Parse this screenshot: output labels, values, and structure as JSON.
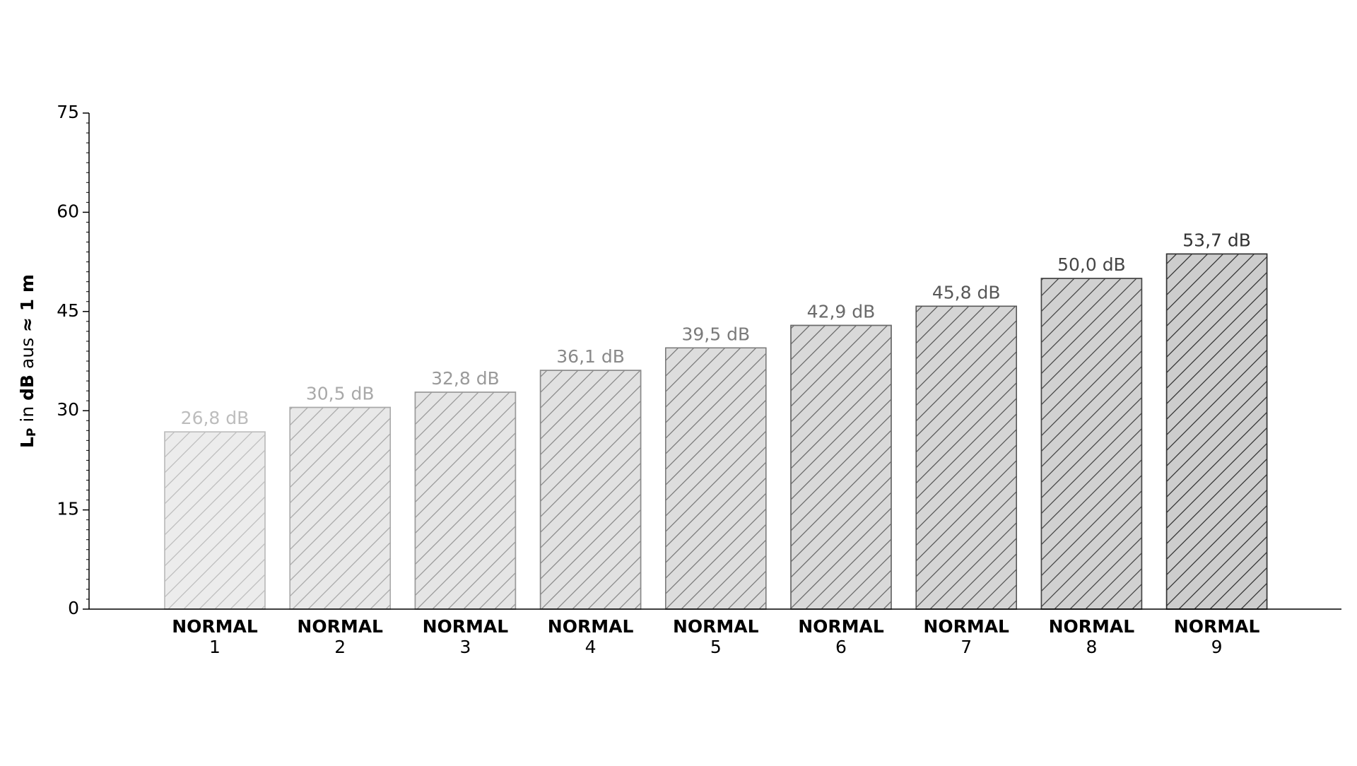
{
  "chart_data": {
    "type": "bar",
    "y_label": {
      "main": "L",
      "sub": "P",
      "in": " in ",
      "unit": "dB",
      "aus": " aus ",
      "dist": "≈ 1 m"
    },
    "categories": [
      [
        "NORMAL",
        "1"
      ],
      [
        "NORMAL",
        "2"
      ],
      [
        "NORMAL",
        "3"
      ],
      [
        "NORMAL",
        "4"
      ],
      [
        "NORMAL",
        "5"
      ],
      [
        "NORMAL",
        "6"
      ],
      [
        "NORMAL",
        "7"
      ],
      [
        "NORMAL",
        "8"
      ],
      [
        "NORMAL",
        "9"
      ]
    ],
    "values": [
      26.8,
      30.5,
      32.8,
      36.1,
      39.5,
      42.9,
      45.8,
      50.0,
      53.7
    ],
    "value_labels": [
      "26,8 dB",
      "30,5 dB",
      "32,8 dB",
      "36,1 dB",
      "39,5 dB",
      "42,9 dB",
      "45,8 dB",
      "50,0 dB",
      "53,7 dB"
    ],
    "colors": [
      "#ececec",
      "#e8e8e8",
      "#e5e5e5",
      "#e1e1e1",
      "#dddddd",
      "#d9d9d9",
      "#d5d5d5",
      "#d1d1d1",
      "#cdcdcd"
    ],
    "edge_colors": [
      "#bdbdbd",
      "#a9a9a9",
      "#9a9a9a",
      "#8a8a8a",
      "#7a7a7a",
      "#6a6a6a",
      "#575757",
      "#464646",
      "#333333"
    ],
    "hatch": "/",
    "ylim": [
      0,
      75
    ],
    "yticks": [
      0,
      15,
      30,
      45,
      60,
      75
    ],
    "yminorticks": [
      1.5,
      3,
      4.5,
      6,
      7.5,
      9,
      10.5,
      12,
      13.5,
      16.5,
      18,
      19.5,
      21,
      22.5,
      24,
      25.5,
      27,
      28.5,
      31.5,
      33,
      34.5,
      36,
      37.5,
      39,
      40.5,
      42,
      43.5,
      46.5,
      48,
      49.5,
      51,
      52.5,
      54,
      55.5,
      57,
      58.5,
      61.5,
      63,
      64.5,
      66,
      67.5,
      69,
      70.5,
      72,
      73.5
    ],
    "grid": false
  }
}
